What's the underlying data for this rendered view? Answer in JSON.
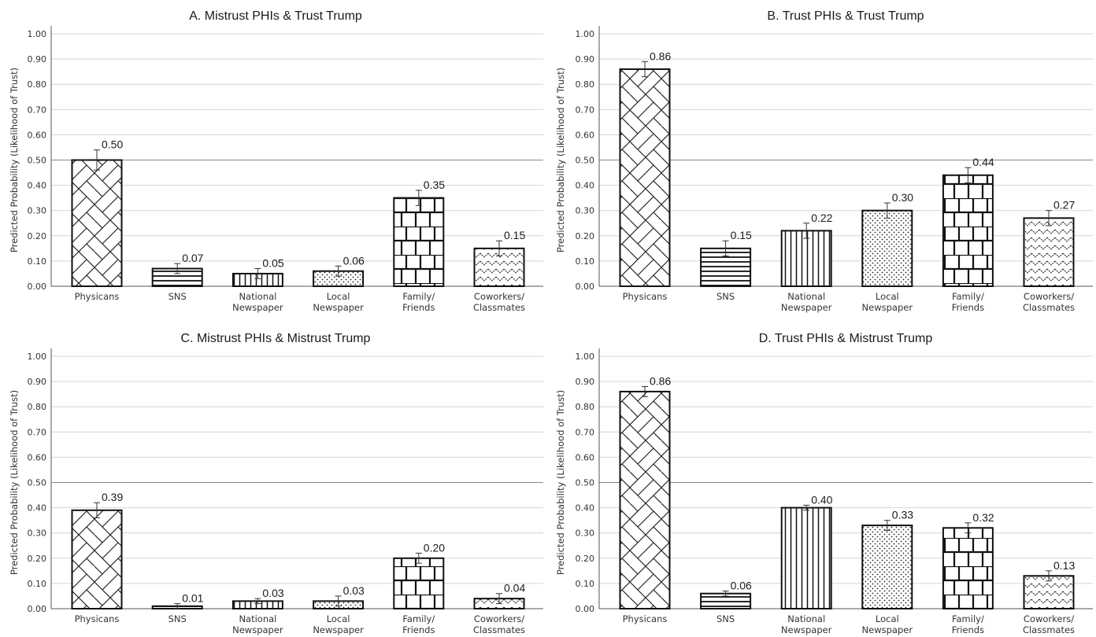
{
  "chart_data": [
    {
      "type": "bar",
      "title": "A. Mistrust PHIs & Trust Trump",
      "ylabel": "Predicted Probability (Likelihood of Trust)",
      "ylim": [
        0,
        1
      ],
      "yticks": [
        "0.00",
        "0.10",
        "0.20",
        "0.30",
        "0.40",
        "0.50",
        "0.60",
        "0.70",
        "0.80",
        "0.90",
        "1.00"
      ],
      "categories": [
        "Physicans",
        "SNS",
        "National Newspaper",
        "Local Newspaper",
        "Family/ Friends",
        "Coworkers/ Classmates"
      ],
      "category_lines": [
        [
          "Physicans"
        ],
        [
          "SNS"
        ],
        [
          "National",
          "Newspaper"
        ],
        [
          "Local",
          "Newspaper"
        ],
        [
          "Family/",
          "Friends"
        ],
        [
          "Coworkers/",
          "Classmates"
        ]
      ],
      "values": [
        0.5,
        0.07,
        0.05,
        0.06,
        0.35,
        0.15
      ],
      "error": [
        0.04,
        0.02,
        0.02,
        0.02,
        0.03,
        0.03
      ],
      "labels": [
        "0.50",
        "0.07",
        "0.05",
        "0.06",
        "0.35",
        "0.15"
      ],
      "patterns": [
        "herringbone",
        "hlines",
        "vlines",
        "dots",
        "brick",
        "chevron"
      ],
      "grid": "horizontal"
    },
    {
      "type": "bar",
      "title": "B. Trust PHIs & Trust Trump",
      "ylabel": "Predicted Probability (Likelihood of Trust)",
      "ylim": [
        0,
        1
      ],
      "yticks": [
        "0.00",
        "0.10",
        "0.20",
        "0.30",
        "0.40",
        "0.50",
        "0.60",
        "0.70",
        "0.80",
        "0.90",
        "1.00"
      ],
      "categories": [
        "Physicans",
        "SNS",
        "National Newspaper",
        "Local Newspaper",
        "Family/ Friends",
        "Coworkers/ Classmates"
      ],
      "category_lines": [
        [
          "Physicans"
        ],
        [
          "SNS"
        ],
        [
          "National",
          "Newspaper"
        ],
        [
          "Local",
          "Newspaper"
        ],
        [
          "Family/",
          "Friends"
        ],
        [
          "Coworkers/",
          "Classmates"
        ]
      ],
      "values": [
        0.86,
        0.15,
        0.22,
        0.3,
        0.44,
        0.27
      ],
      "error": [
        0.03,
        0.03,
        0.03,
        0.03,
        0.03,
        0.03
      ],
      "labels": [
        "0.86",
        "0.15",
        "0.22",
        "0.30",
        "0.44",
        "0.27"
      ],
      "patterns": [
        "herringbone",
        "hlines",
        "vlines",
        "dots",
        "brick",
        "chevron"
      ],
      "grid": "horizontal"
    },
    {
      "type": "bar",
      "title": "C. Mistrust PHIs & Mistrust Trump",
      "ylabel": "Predicted Probability (Likelihood of Trust)",
      "ylim": [
        0,
        1
      ],
      "yticks": [
        "0.00",
        "0.10",
        "0.20",
        "0.30",
        "0.40",
        "0.50",
        "0.60",
        "0.70",
        "0.80",
        "0.90",
        "1.00"
      ],
      "categories": [
        "Physicans",
        "SNS",
        "National Newspaper",
        "Local Newspaper",
        "Family/ Friends",
        "Coworkers/ Classmates"
      ],
      "category_lines": [
        [
          "Physicans"
        ],
        [
          "SNS"
        ],
        [
          "National",
          "Newspaper"
        ],
        [
          "Local",
          "Newspaper"
        ],
        [
          "Family/",
          "Friends"
        ],
        [
          "Coworkers/",
          "Classmates"
        ]
      ],
      "values": [
        0.39,
        0.01,
        0.03,
        0.03,
        0.2,
        0.04
      ],
      "error": [
        0.03,
        0.01,
        0.01,
        0.02,
        0.02,
        0.02
      ],
      "labels": [
        "0.39",
        "0.01",
        "0.03",
        "0.03",
        "0.20",
        "0.04"
      ],
      "patterns": [
        "herringbone",
        "hlines",
        "vlines",
        "dots",
        "brick",
        "chevron"
      ],
      "grid": "horizontal"
    },
    {
      "type": "bar",
      "title": "D. Trust PHIs & Mistrust Trump",
      "ylabel": "Predicted Probability (Likelihood of Trust)",
      "ylim": [
        0,
        1
      ],
      "yticks": [
        "0.00",
        "0.10",
        "0.20",
        "0.30",
        "0.40",
        "0.50",
        "0.60",
        "0.70",
        "0.80",
        "0.90",
        "1.00"
      ],
      "categories": [
        "Physicans",
        "SNS",
        "National Newspaper",
        "Local Newspaper",
        "Family/ Friends",
        "Coworkers/ Classmates"
      ],
      "category_lines": [
        [
          "Physicans"
        ],
        [
          "SNS"
        ],
        [
          "National",
          "Newspaper"
        ],
        [
          "Local",
          "Newspaper"
        ],
        [
          "Family/",
          "Friends"
        ],
        [
          "Coworkers/",
          "Classmates"
        ]
      ],
      "values": [
        0.86,
        0.06,
        0.4,
        0.33,
        0.32,
        0.13
      ],
      "error": [
        0.02,
        0.01,
        0.01,
        0.02,
        0.02,
        0.02
      ],
      "labels": [
        "0.86",
        "0.06",
        "0.40",
        "0.33",
        "0.32",
        "0.13"
      ],
      "patterns": [
        "herringbone",
        "hlines",
        "vlines",
        "dots",
        "brick",
        "chevron"
      ],
      "grid": "horizontal"
    }
  ]
}
